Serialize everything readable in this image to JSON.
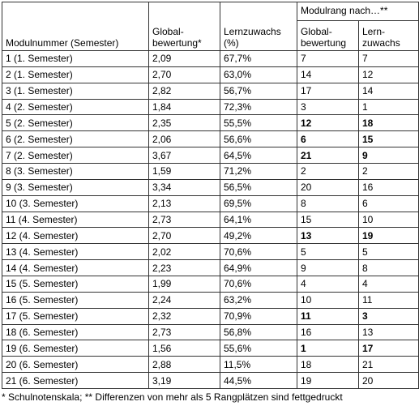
{
  "table": {
    "header": {
      "module": "Modulnummer (Semester)",
      "global": "Global-\nbewertung*",
      "growth": "Lernzuwachs\n(%)",
      "rank_group": "Modulrang nach…**",
      "rank_global": "Global-\nbewertung",
      "rank_growth": "Lern-\nzuwachs"
    },
    "rows": [
      {
        "cells": [
          "1 (1. Semester)",
          "2,09",
          "67,7%",
          "7",
          "7"
        ],
        "bold": []
      },
      {
        "cells": [
          "2 (1. Semester)",
          "2,70",
          "63,0%",
          "14",
          "12"
        ],
        "bold": []
      },
      {
        "cells": [
          "3 (1. Semester)",
          "2,82",
          "56,7%",
          "17",
          "14"
        ],
        "bold": []
      },
      {
        "cells": [
          "4 (2. Semester)",
          "1,84",
          "72,3%",
          "3",
          "1"
        ],
        "bold": []
      },
      {
        "cells": [
          "5 (2. Semester)",
          "2,35",
          "55,5%",
          "12",
          "18"
        ],
        "bold": [
          3,
          4
        ]
      },
      {
        "cells": [
          "6 (2. Semester)",
          "2,06",
          "56,6%",
          "6",
          "15"
        ],
        "bold": [
          3,
          4
        ]
      },
      {
        "cells": [
          "7 (2. Semester)",
          "3,67",
          "64,5%",
          "21",
          "9"
        ],
        "bold": [
          3,
          4
        ]
      },
      {
        "cells": [
          "8 (3. Semester)",
          "1,59",
          "71,2%",
          "2",
          "2"
        ],
        "bold": []
      },
      {
        "cells": [
          "9 (3. Semester)",
          "3,34",
          "56,5%",
          "20",
          "16"
        ],
        "bold": []
      },
      {
        "cells": [
          "10 (3. Semester)",
          "2,13",
          "69,5%",
          "8",
          "6"
        ],
        "bold": []
      },
      {
        "cells": [
          "11 (4. Semester)",
          "2,73",
          "64,1%",
          "15",
          "10"
        ],
        "bold": []
      },
      {
        "cells": [
          "12 (4. Semester)",
          "2,70",
          "49,2%",
          "13",
          "19"
        ],
        "bold": [
          3,
          4
        ]
      },
      {
        "cells": [
          "13 (4. Semester)",
          "2,02",
          "70,6%",
          "5",
          "5"
        ],
        "bold": []
      },
      {
        "cells": [
          "14 (4. Semester)",
          "2,23",
          "64,9%",
          "9",
          "8"
        ],
        "bold": []
      },
      {
        "cells": [
          "15 (5. Semester)",
          "1,99",
          "70,6%",
          "4",
          "4"
        ],
        "bold": []
      },
      {
        "cells": [
          "16 (5. Semester)",
          "2,24",
          "63,2%",
          "10",
          "11"
        ],
        "bold": []
      },
      {
        "cells": [
          "17 (5. Semester)",
          "2,32",
          "70,9%",
          "11",
          "3"
        ],
        "bold": [
          3,
          4
        ]
      },
      {
        "cells": [
          "18 (6. Semester)",
          "2,73",
          "56,8%",
          "16",
          "13"
        ],
        "bold": []
      },
      {
        "cells": [
          "19 (6. Semester)",
          "1,56",
          "55,6%",
          "1",
          "17"
        ],
        "bold": [
          3,
          4
        ]
      },
      {
        "cells": [
          "20 (6. Semester)",
          "2,88",
          "11,5%",
          "18",
          "21"
        ],
        "bold": []
      },
      {
        "cells": [
          "21 (6. Semester)",
          "3,19",
          "44,5%",
          "19",
          "20"
        ],
        "bold": []
      }
    ],
    "footnote": "* Schulnotenskala; ** Differenzen von mehr als 5 Rangplätzen sind fettgedruckt"
  }
}
